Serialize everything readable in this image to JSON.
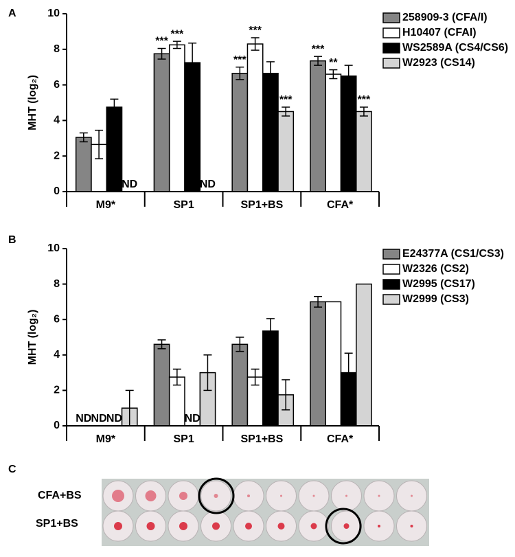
{
  "panels": {
    "a": "A",
    "b": "B",
    "c": "C"
  },
  "chart_data": [
    {
      "type": "bar",
      "y_label": "MHT (log₂)",
      "categories": [
        "M9*",
        "SP1",
        "SP1+BS",
        "CFA*"
      ],
      "ylim": [
        0,
        10
      ],
      "yticks": [
        0,
        2,
        4,
        6,
        8,
        10
      ],
      "legend": "upper right",
      "series": [
        {
          "name": "258909-3 (CFA/I)",
          "color": "#858585",
          "values": [
            3.05,
            7.75,
            6.65,
            7.35
          ],
          "errors": [
            0.25,
            0.3,
            0.35,
            0.25
          ],
          "value_labels": [
            null,
            null,
            null,
            null
          ],
          "stars": [
            null,
            "***",
            "***",
            "***"
          ]
        },
        {
          "name": "H10407 (CFAI)",
          "color": "#ffffff",
          "values": [
            2.65,
            8.25,
            8.3,
            6.6
          ],
          "errors": [
            0.8,
            0.2,
            0.35,
            0.25
          ],
          "value_labels": [
            null,
            null,
            null,
            null
          ],
          "stars": [
            null,
            "***",
            "***",
            "**"
          ]
        },
        {
          "name": "WS2589A (CS4/CS6)",
          "color": "#000000",
          "values": [
            4.75,
            7.25,
            6.65,
            6.5
          ],
          "errors": [
            0.45,
            1.1,
            0.65,
            0.6
          ],
          "value_labels": [
            null,
            null,
            null,
            null
          ],
          "stars": [
            null,
            null,
            null,
            null
          ]
        },
        {
          "name": "W2923 (CS14)",
          "color": "#d4d4d4",
          "values": [
            null,
            null,
            4.5,
            4.5
          ],
          "errors": [
            null,
            null,
            0.25,
            0.25
          ],
          "value_labels": [
            "ND",
            "ND",
            null,
            null
          ],
          "stars": [
            null,
            null,
            "***",
            "***"
          ]
        }
      ]
    },
    {
      "type": "bar",
      "y_label": "MHT (log₂)",
      "categories": [
        "M9*",
        "SP1",
        "SP1+BS",
        "CFA*"
      ],
      "ylim": [
        0,
        10
      ],
      "yticks": [
        0,
        2,
        4,
        6,
        8,
        10
      ],
      "legend": "upper right",
      "series": [
        {
          "name": "E24377A (CS1/CS3)",
          "color": "#858585",
          "values": [
            null,
            4.6,
            4.6,
            7.0
          ],
          "errors": [
            null,
            0.25,
            0.4,
            0.3
          ],
          "value_labels": [
            "ND",
            null,
            null,
            null
          ],
          "stars": [
            null,
            null,
            null,
            null
          ]
        },
        {
          "name": "W2326 (CS2)",
          "color": "#ffffff",
          "values": [
            null,
            2.75,
            2.75,
            7.0
          ],
          "errors": [
            null,
            0.45,
            0.45,
            null
          ],
          "value_labels": [
            "ND",
            null,
            null,
            null
          ],
          "stars": [
            null,
            null,
            null,
            null
          ]
        },
        {
          "name": "W2995 (CS17)",
          "color": "#000000",
          "values": [
            null,
            null,
            5.35,
            3.0
          ],
          "errors": [
            null,
            null,
            0.7,
            1.1
          ],
          "value_labels": [
            "ND",
            "ND",
            null,
            null
          ],
          "stars": [
            null,
            null,
            null,
            null
          ]
        },
        {
          "name": "W2999 (CS3)",
          "color": "#d4d4d4",
          "values": [
            1.0,
            3.0,
            1.75,
            8.0
          ],
          "errors": [
            1.0,
            1.0,
            0.85,
            null
          ],
          "value_labels": [
            null,
            null,
            null,
            null
          ],
          "stars": [
            null,
            null,
            null,
            null
          ]
        }
      ]
    }
  ],
  "plate": {
    "rows": [
      "CFA+BS",
      "SP1+BS"
    ]
  }
}
